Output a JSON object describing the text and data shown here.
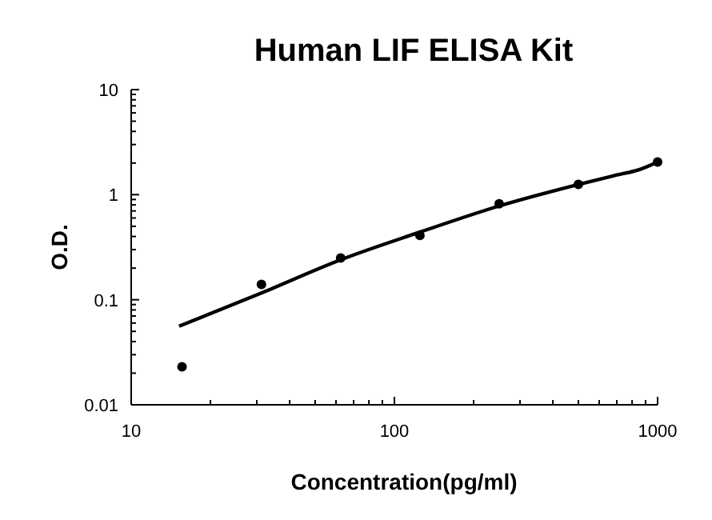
{
  "chart_data": {
    "type": "scatter",
    "title": "Human LIF ELISA Kit",
    "xlabel": "Concentration(pg/ml)",
    "ylabel": "O.D.",
    "log": "xy",
    "marker": "circle",
    "grid": false,
    "xlim": [
      10,
      1000
    ],
    "ylim": [
      0.01,
      10
    ],
    "xticks": [
      10,
      {
        "value": 20,
        "label": null
      },
      {
        "value": 30,
        "label": null
      },
      {
        "value": 40,
        "label": null
      },
      {
        "value": 50,
        "label": null
      },
      {
        "value": 60,
        "label": null
      },
      {
        "value": 70,
        "label": null
      },
      {
        "value": 80,
        "label": null
      },
      {
        "value": 90,
        "label": null
      },
      100,
      {
        "value": 200,
        "label": null
      },
      {
        "value": 300,
        "label": null
      },
      {
        "value": 400,
        "label": null
      },
      {
        "value": 500,
        "label": null
      },
      {
        "value": 600,
        "label": null
      },
      {
        "value": 700,
        "label": null
      },
      {
        "value": 800,
        "label": null
      },
      {
        "value": 900,
        "label": null
      },
      1000
    ],
    "yticks": [
      0.01,
      {
        "value": 0.02,
        "label": null
      },
      {
        "value": 0.03,
        "label": null
      },
      {
        "value": 0.04,
        "label": null
      },
      {
        "value": 0.05,
        "label": null
      },
      {
        "value": 0.06,
        "label": null
      },
      {
        "value": 0.07,
        "label": null
      },
      {
        "value": 0.08,
        "label": null
      },
      {
        "value": 0.09,
        "label": null
      },
      0.1,
      {
        "value": 0.2,
        "label": null
      },
      {
        "value": 0.3,
        "label": null
      },
      {
        "value": 0.4,
        "label": null
      },
      {
        "value": 0.5,
        "label": null
      },
      {
        "value": 0.6,
        "label": null
      },
      {
        "value": 0.7,
        "label": null
      },
      {
        "value": 0.8,
        "label": null
      },
      {
        "value": 0.9,
        "label": null
      },
      1,
      {
        "value": 2,
        "label": null
      },
      {
        "value": 3,
        "label": null
      },
      {
        "value": 4,
        "label": null
      },
      {
        "value": 5,
        "label": null
      },
      {
        "value": 6,
        "label": null
      },
      {
        "value": 7,
        "label": null
      },
      {
        "value": 8,
        "label": null
      },
      {
        "value": 9,
        "label": null
      },
      10
    ],
    "series": [
      {
        "color": "#000000",
        "x": [
          15.6,
          31.25,
          62.5,
          125,
          250,
          500,
          1000
        ],
        "values": [
          0.023,
          0.14,
          0.25,
          0.41,
          0.82,
          1.25,
          2.05
        ]
      },
      {
        "type": "line",
        "color": "#000000",
        "marker": "none",
        "line_style": "solid",
        "x": [
          15.2,
          31.25,
          62.5,
          125,
          250,
          500,
          700,
          850,
          1000
        ],
        "values": [
          0.056,
          0.116,
          0.24,
          0.44,
          0.78,
          1.25,
          1.54,
          1.73,
          2.05
        ]
      }
    ]
  }
}
